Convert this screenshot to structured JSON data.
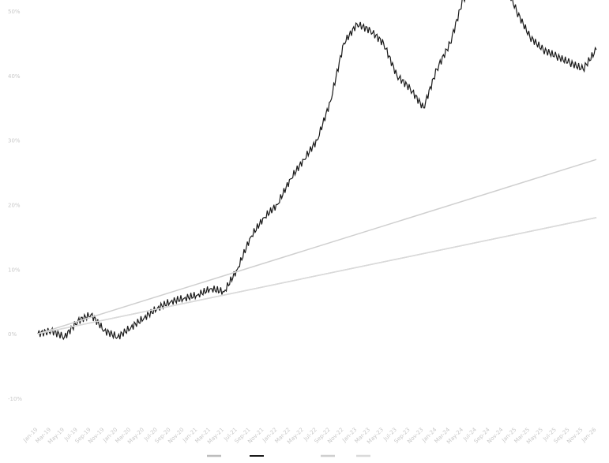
{
  "chart_data": {
    "type": "line",
    "title": "",
    "xlabel": "",
    "ylabel": "",
    "y_ticks": [
      "50%",
      "40%",
      "30%",
      "20%",
      "10%",
      "0%",
      "-10%"
    ],
    "ylim": [
      -10,
      50
    ],
    "grid": false,
    "legend_placement": "bottom",
    "x_ticks": [
      "Jan-19",
      "Mar-19",
      "May-19",
      "Jul-19",
      "Sep-19",
      "Nov-19",
      "Jan-20",
      "Mar-20",
      "May-20",
      "Jul-20",
      "Sep-20",
      "Nov-20",
      "Jan-21",
      "Mar-21",
      "May-21",
      "Jul-21",
      "Sep-21",
      "Nov-21",
      "Jan-22",
      "Mar-22",
      "May-22",
      "Jul-22",
      "Sep-22",
      "Nov-22",
      "Jan-23",
      "Mar-23",
      "May-23",
      "Jul-23",
      "Sep-23",
      "Nov-23",
      "Jan-24",
      "Mar-24",
      "May-24",
      "Jul-24",
      "Sep-24",
      "Nov-24",
      "Jan-25",
      "Mar-25",
      "May-25",
      "Jul-25",
      "Sep-25",
      "Nov-25",
      "Jan-26"
    ],
    "series": [
      {
        "name": "",
        "color": "#bdbdbd",
        "x_index": [
          0,
          42
        ],
        "values": [
          0,
          18
        ]
      },
      {
        "name": "",
        "color": "#1a1a1a",
        "x_index": [
          0,
          1,
          2,
          3,
          4,
          5,
          6,
          7,
          8,
          9,
          10,
          11,
          12,
          13,
          14,
          15,
          16,
          17,
          18,
          19,
          20,
          21,
          22,
          23,
          24,
          25,
          26,
          27,
          28,
          29,
          30,
          31,
          32,
          33,
          34,
          35,
          36,
          37,
          38,
          39,
          40,
          41,
          42
        ],
        "values": [
          0,
          0.5,
          -0.5,
          2,
          3,
          0.5,
          -0.5,
          1,
          2.5,
          4,
          5,
          5.5,
          6,
          7,
          6.5,
          10,
          15,
          18,
          20,
          24,
          27,
          30,
          36,
          45,
          48,
          47,
          45,
          40,
          38,
          35,
          41,
          45,
          52,
          53,
          56,
          55,
          50,
          46,
          44,
          43,
          42,
          41,
          44
        ]
      },
      {
        "name": "",
        "color": "#cfcfcf",
        "x_index": [
          0,
          42
        ],
        "values": [
          0,
          27
        ]
      },
      {
        "name": "",
        "color": "#dadada",
        "x_index": [
          0,
          42
        ],
        "values": [
          0,
          18
        ]
      }
    ]
  }
}
